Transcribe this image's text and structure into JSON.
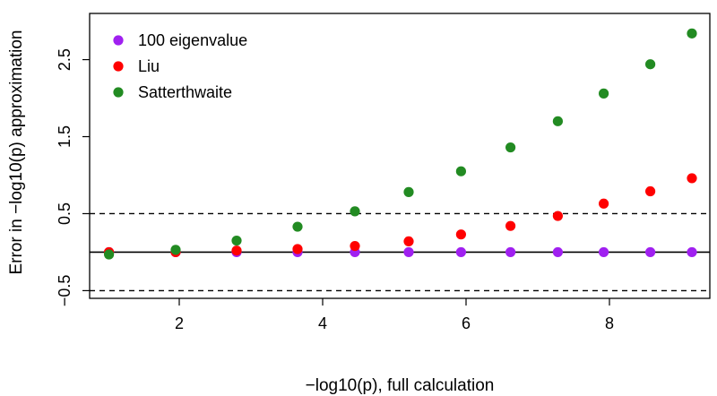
{
  "chart_data": {
    "type": "scatter",
    "title": "",
    "xlabel": "−log10(p), full calculation",
    "ylabel": "Error in −log10(p) approximation",
    "xlim": [
      0.75,
      9.4
    ],
    "ylim": [
      -0.6,
      3.1
    ],
    "x_ticks": [
      2,
      4,
      6,
      8
    ],
    "y_ticks": [
      -0.5,
      0.5,
      1.5,
      2.5
    ],
    "x_tick_labels": [
      "2",
      "4",
      "6",
      "8"
    ],
    "y_tick_labels": [
      "−0.5",
      "0.5",
      "1.5",
      "2.5"
    ],
    "hlines": [
      {
        "y": 0,
        "style": "solid"
      },
      {
        "y": 0.5,
        "style": "dashed"
      },
      {
        "y": -0.5,
        "style": "dashed"
      }
    ],
    "legend_position": "top-left",
    "series": [
      {
        "name": "100 eigenvalue",
        "color": "#a020f0",
        "points": [
          [
            1.02,
            0.0
          ],
          [
            1.95,
            0.0
          ],
          [
            2.8,
            0.0
          ],
          [
            3.65,
            0.0
          ],
          [
            4.45,
            0.0
          ],
          [
            5.2,
            0.0
          ],
          [
            5.93,
            0.0
          ],
          [
            6.62,
            0.0
          ],
          [
            7.28,
            0.0
          ],
          [
            7.92,
            0.0
          ],
          [
            8.57,
            0.0
          ],
          [
            9.15,
            0.0
          ]
        ]
      },
      {
        "name": "Liu",
        "color": "#ff0000",
        "points": [
          [
            1.02,
            0.0
          ],
          [
            1.95,
            0.0
          ],
          [
            2.8,
            0.02
          ],
          [
            3.65,
            0.04
          ],
          [
            4.45,
            0.08
          ],
          [
            5.2,
            0.14
          ],
          [
            5.93,
            0.23
          ],
          [
            6.62,
            0.34
          ],
          [
            7.28,
            0.47
          ],
          [
            7.92,
            0.63
          ],
          [
            8.57,
            0.79
          ],
          [
            9.15,
            0.96
          ]
        ]
      },
      {
        "name": "Satterthwaite",
        "color": "#228b22",
        "points": [
          [
            1.02,
            -0.03
          ],
          [
            1.95,
            0.03
          ],
          [
            2.8,
            0.15
          ],
          [
            3.65,
            0.33
          ],
          [
            4.45,
            0.53
          ],
          [
            5.2,
            0.78
          ],
          [
            5.93,
            1.05
          ],
          [
            6.62,
            1.36
          ],
          [
            7.28,
            1.7
          ],
          [
            7.92,
            2.06
          ],
          [
            8.57,
            2.44
          ],
          [
            9.15,
            2.84
          ]
        ]
      }
    ]
  }
}
